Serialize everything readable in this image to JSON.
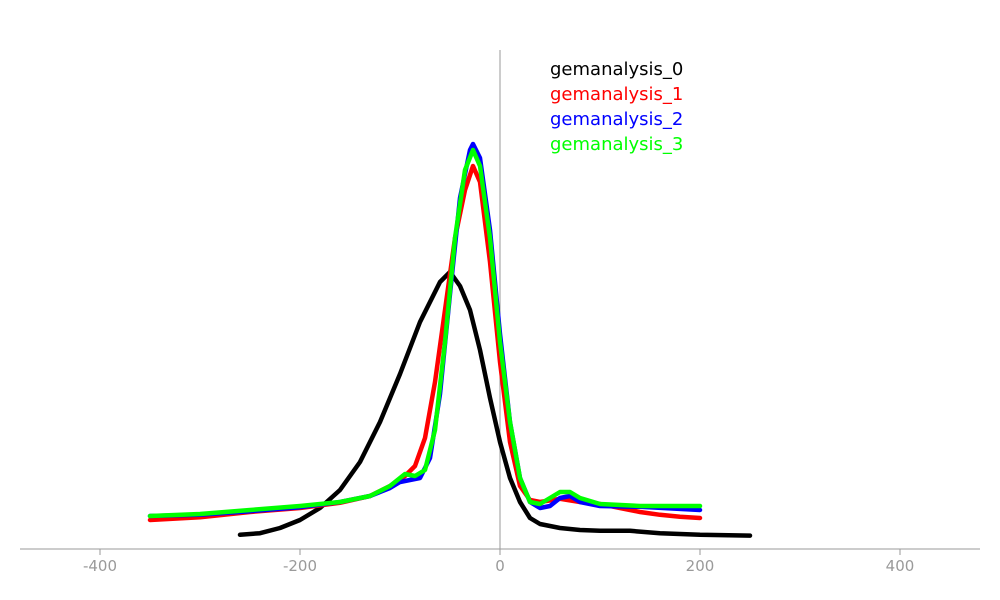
{
  "chart_data": {
    "type": "line",
    "title": "",
    "xlabel": "",
    "ylabel": "",
    "xlim": [
      -480,
      480
    ],
    "ylim": [
      0,
      1.0
    ],
    "x_ticks": [
      -400,
      -200,
      0,
      200,
      400
    ],
    "x_tick_labels": [
      "-400",
      "-200",
      "0",
      "200",
      "400"
    ],
    "grid": false,
    "legend": "top-right",
    "series": [
      {
        "name": "gemanalysis_0",
        "color": "#000000",
        "points": [
          [
            -260,
            0.018
          ],
          [
            -240,
            0.022
          ],
          [
            -220,
            0.035
          ],
          [
            -200,
            0.055
          ],
          [
            -180,
            0.085
          ],
          [
            -160,
            0.13
          ],
          [
            -140,
            0.2
          ],
          [
            -120,
            0.3
          ],
          [
            -100,
            0.42
          ],
          [
            -80,
            0.55
          ],
          [
            -60,
            0.65
          ],
          [
            -50,
            0.675
          ],
          [
            -40,
            0.64
          ],
          [
            -30,
            0.58
          ],
          [
            -20,
            0.48
          ],
          [
            -10,
            0.36
          ],
          [
            0,
            0.25
          ],
          [
            10,
            0.16
          ],
          [
            20,
            0.1
          ],
          [
            30,
            0.06
          ],
          [
            40,
            0.045
          ],
          [
            60,
            0.035
          ],
          [
            80,
            0.03
          ],
          [
            100,
            0.028
          ],
          [
            130,
            0.028
          ],
          [
            160,
            0.022
          ],
          [
            200,
            0.018
          ],
          [
            250,
            0.016
          ]
        ]
      },
      {
        "name": "gemanalysis_1",
        "color": "#ff0000",
        "points": [
          [
            -350,
            0.055
          ],
          [
            -300,
            0.062
          ],
          [
            -250,
            0.075
          ],
          [
            -200,
            0.085
          ],
          [
            -160,
            0.098
          ],
          [
            -130,
            0.115
          ],
          [
            -110,
            0.14
          ],
          [
            -95,
            0.165
          ],
          [
            -85,
            0.19
          ],
          [
            -75,
            0.26
          ],
          [
            -65,
            0.4
          ],
          [
            -55,
            0.58
          ],
          [
            -45,
            0.76
          ],
          [
            -35,
            0.88
          ],
          [
            -27,
            0.94
          ],
          [
            -20,
            0.9
          ],
          [
            -10,
            0.7
          ],
          [
            0,
            0.45
          ],
          [
            10,
            0.25
          ],
          [
            20,
            0.14
          ],
          [
            30,
            0.105
          ],
          [
            40,
            0.1
          ],
          [
            60,
            0.108
          ],
          [
            80,
            0.1
          ],
          [
            100,
            0.095
          ],
          [
            120,
            0.085
          ],
          [
            140,
            0.075
          ],
          [
            160,
            0.068
          ],
          [
            180,
            0.063
          ],
          [
            200,
            0.06
          ]
        ]
      },
      {
        "name": "gemanalysis_2",
        "color": "#0000ff",
        "points": [
          [
            -350,
            0.065
          ],
          [
            -300,
            0.068
          ],
          [
            -250,
            0.077
          ],
          [
            -200,
            0.087
          ],
          [
            -160,
            0.1
          ],
          [
            -130,
            0.115
          ],
          [
            -110,
            0.135
          ],
          [
            -100,
            0.15
          ],
          [
            -90,
            0.155
          ],
          [
            -80,
            0.16
          ],
          [
            -70,
            0.21
          ],
          [
            -60,
            0.37
          ],
          [
            -50,
            0.62
          ],
          [
            -40,
            0.86
          ],
          [
            -30,
            0.98
          ],
          [
            -27,
            0.995
          ],
          [
            -20,
            0.96
          ],
          [
            -10,
            0.78
          ],
          [
            0,
            0.52
          ],
          [
            10,
            0.3
          ],
          [
            20,
            0.16
          ],
          [
            30,
            0.1
          ],
          [
            40,
            0.085
          ],
          [
            50,
            0.09
          ],
          [
            60,
            0.11
          ],
          [
            70,
            0.115
          ],
          [
            80,
            0.1
          ],
          [
            100,
            0.09
          ],
          [
            140,
            0.088
          ],
          [
            200,
            0.08
          ]
        ]
      },
      {
        "name": "gemanalysis_3",
        "color": "#00ff00",
        "points": [
          [
            -350,
            0.065
          ],
          [
            -300,
            0.07
          ],
          [
            -250,
            0.08
          ],
          [
            -200,
            0.09
          ],
          [
            -160,
            0.1
          ],
          [
            -130,
            0.115
          ],
          [
            -110,
            0.14
          ],
          [
            -100,
            0.16
          ],
          [
            -95,
            0.17
          ],
          [
            -85,
            0.165
          ],
          [
            -75,
            0.18
          ],
          [
            -65,
            0.28
          ],
          [
            -55,
            0.5
          ],
          [
            -45,
            0.76
          ],
          [
            -35,
            0.93
          ],
          [
            -27,
            0.98
          ],
          [
            -20,
            0.94
          ],
          [
            -10,
            0.76
          ],
          [
            0,
            0.5
          ],
          [
            10,
            0.3
          ],
          [
            20,
            0.16
          ],
          [
            30,
            0.1
          ],
          [
            40,
            0.095
          ],
          [
            50,
            0.11
          ],
          [
            60,
            0.125
          ],
          [
            70,
            0.125
          ],
          [
            80,
            0.11
          ],
          [
            100,
            0.095
          ],
          [
            140,
            0.09
          ],
          [
            200,
            0.09
          ]
        ]
      }
    ]
  }
}
